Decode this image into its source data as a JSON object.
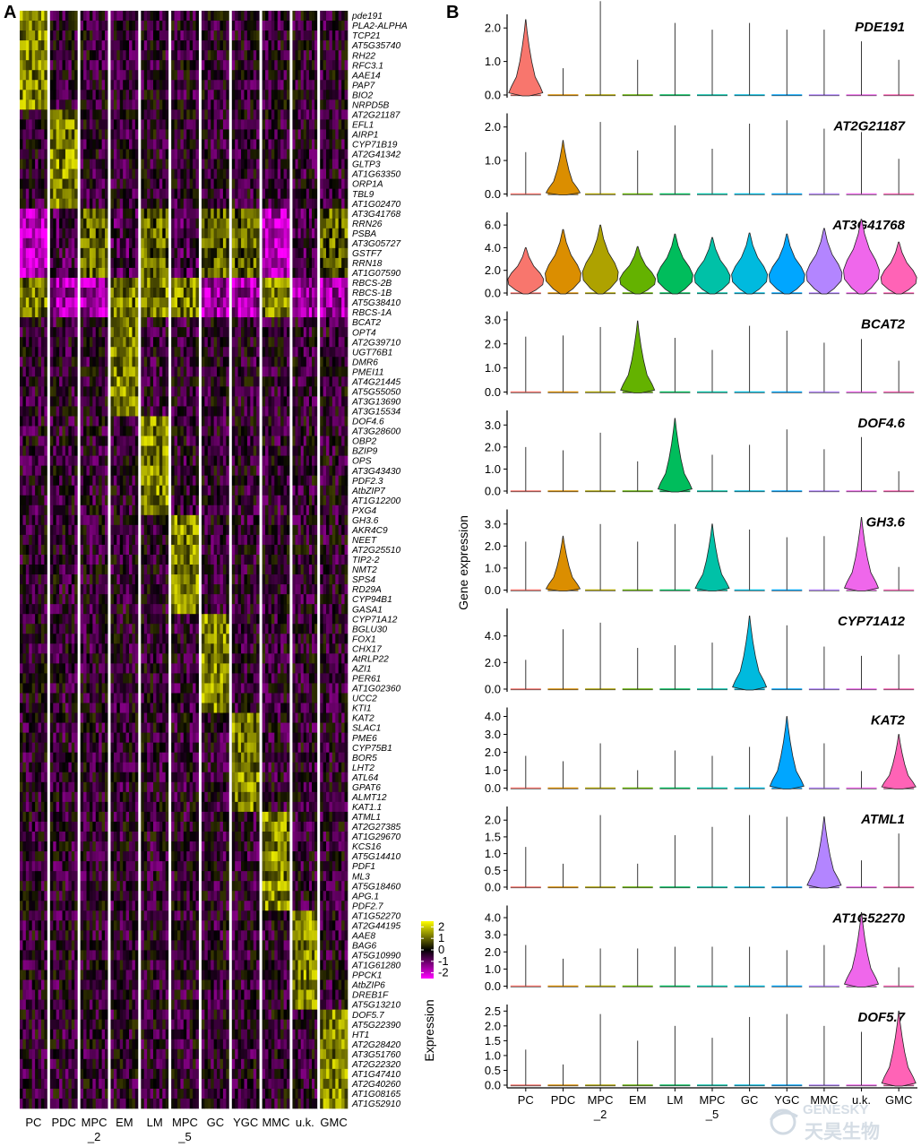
{
  "panels": {
    "a_label": "A",
    "b_label": "B"
  },
  "chart_data": [
    {
      "type": "heatmap",
      "panel": "A",
      "clusters": [
        "PC",
        "PDC",
        "MPC_2",
        "EM",
        "LM",
        "MPC_5",
        "GC",
        "YGC",
        "MMC",
        "u.k.",
        "GMC"
      ],
      "cluster_labels": [
        [
          "PC"
        ],
        [
          "PDC"
        ],
        [
          "MPC",
          "_2"
        ],
        [
          "EM"
        ],
        [
          "LM"
        ],
        [
          "MPC",
          "_5"
        ],
        [
          "GC"
        ],
        [
          "YGC"
        ],
        [
          "MMC"
        ],
        [
          "u.k."
        ],
        [
          "GMC"
        ]
      ],
      "cluster_widths": [
        3,
        3,
        3,
        3,
        3,
        3,
        3,
        3,
        3,
        2.7,
        3
      ],
      "genes": [
        "pde191",
        "PLA2-ALPHA",
        "TCP21",
        "AT5G35740",
        "RH22",
        "RFC3.1",
        "AAE14",
        "PAP7",
        "BIO2",
        "NRPD5B",
        "AT2G21187",
        "EFL1",
        "AIRP1",
        "CYP71B19",
        "AT2G41342",
        "GLTP3",
        "AT1G63350",
        "ORP1A",
        "TBL9",
        "AT1G02470",
        "AT3G41768",
        "RRN26",
        "PSBA",
        "AT3G05727",
        "GSTF7",
        "RRN18",
        "AT1G07590",
        "RBCS-2B",
        "RBCS-1B",
        "AT5G38410",
        "RBCS-1A",
        "BCAT2",
        "OPT4",
        "AT2G39710",
        "UGT76B1",
        "DMR6",
        "PMEI11",
        "AT4G21445",
        "AT5G55050",
        "AT3G13690",
        "AT3G15534",
        "DOF4.6",
        "AT3G28600",
        "OBP2",
        "BZIP9",
        "OPS",
        "AT3G43430",
        "PDF2.3",
        "AtbZIP7",
        "AT1G12200",
        "PXG4",
        "GH3.6",
        "AKR4C9",
        "NEET",
        "AT2G25510",
        "TIP2-2",
        "NMT2",
        "SPS4",
        "RD29A",
        "CYP94B1",
        "GASA1",
        "CYP71A12",
        "BGLU30",
        "FOX1",
        "CHX17",
        "AtRLP22",
        "AZI1",
        "PER61",
        "AT1G02360",
        "UCC2",
        "KTI1",
        "KAT2",
        "SLAC1",
        "PME6",
        "CYP75B1",
        "BOR5",
        "LHT2",
        "ATL64",
        "GPAT6",
        "ALMT12",
        "KAT1.1",
        "ATML1",
        "AT2G27385",
        "AT1G29670",
        "KCS16",
        "AT5G14410",
        "PDF1",
        "ML3",
        "AT5G18460",
        "APG.1",
        "PDF2.7",
        "AT1G52270",
        "AT2G44195",
        "AAE8",
        "BAG6",
        "AT5G10990",
        "AT1G61280",
        "PPCK1",
        "AtbZIP6",
        "DREB1F",
        "AT5G13210",
        "DOF5.7",
        "AT5G22390",
        "HT1",
        "AT2G28420",
        "AT3G51760",
        "AT2G22320",
        "AT1G47410",
        "AT2G40260",
        "AT1G08165",
        "AT1G52910"
      ],
      "marker_groups": [
        {
          "cluster": "PC",
          "start": 0,
          "end": 10
        },
        {
          "cluster": "PDC",
          "start": 10,
          "end": 20
        },
        {
          "cluster": "MPC_2",
          "start": 20,
          "end": 27,
          "pattern": "chloroplast"
        },
        {
          "cluster": "PC",
          "start": 27,
          "end": 31,
          "pattern": "rbcs"
        },
        {
          "cluster": "EM",
          "start": 31,
          "end": 41
        },
        {
          "cluster": "LM",
          "start": 41,
          "end": 51
        },
        {
          "cluster": "MPC_5",
          "start": 51,
          "end": 61
        },
        {
          "cluster": "GC",
          "start": 61,
          "end": 71
        },
        {
          "cluster": "YGC",
          "start": 71,
          "end": 81
        },
        {
          "cluster": "MMC",
          "start": 81,
          "end": 91
        },
        {
          "cluster": "u.k.",
          "start": 91,
          "end": 101
        },
        {
          "cluster": "GMC",
          "start": 101,
          "end": 111
        }
      ],
      "color_scale": {
        "title": "Expression",
        "ticks": [
          "2",
          "1",
          "0",
          "-1",
          "-2"
        ],
        "range": [
          -2.5,
          2.5
        ],
        "stops": [
          {
            "value": -2.5,
            "color": "#ff00ff"
          },
          {
            "value": 0,
            "color": "#000000"
          },
          {
            "value": 2.5,
            "color": "#ffff00"
          }
        ]
      }
    },
    {
      "type": "violin",
      "panel": "B",
      "ylabel": "Gene expression",
      "clusters": [
        "PC",
        "PDC",
        "MPC_2",
        "EM",
        "LM",
        "MPC_5",
        "GC",
        "YGC",
        "MMC",
        "u.k.",
        "GMC"
      ],
      "x_tick_labels": [
        [
          "PC"
        ],
        [
          "PDC"
        ],
        [
          "MPC",
          "_2"
        ],
        [
          "EM"
        ],
        [
          "LM"
        ],
        [
          "MPC",
          "_5"
        ],
        [
          "GC"
        ],
        [
          "YGC"
        ],
        [
          "MMC"
        ],
        [
          "u.k."
        ],
        [
          "GMC"
        ]
      ],
      "cluster_colors": [
        "#f8766d",
        "#db8e00",
        "#aea200",
        "#64b200",
        "#00bd5c",
        "#00c1a7",
        "#00bade",
        "#00a6ff",
        "#b385ff",
        "#ef67eb",
        "#ff63b6"
      ],
      "panels": [
        {
          "gene": "PDE191",
          "ylim": [
            0,
            2.3
          ],
          "yticks": [
            "0.0",
            "1.0",
            "2.0"
          ],
          "max": [
            2.25,
            0.8,
            2.8,
            1.05,
            2.15,
            1.95,
            2.15,
            1.95,
            1.95,
            1.6,
            1.05
          ],
          "shape": "b",
          "highlight": [
            0
          ]
        },
        {
          "gene": "AT2G21187",
          "ylim": [
            0,
            2.3
          ],
          "yticks": [
            "0.0",
            "1.0",
            "2.0"
          ],
          "max": [
            1.25,
            1.6,
            2.15,
            1.3,
            2.05,
            1.35,
            2.1,
            2.2,
            1.95,
            1.85,
            1.05
          ],
          "shape": "b",
          "highlight": [
            1
          ]
        },
        {
          "gene": "AT3G41768",
          "ylim": [
            0,
            6.8
          ],
          "yticks": [
            "0.0",
            "2.0",
            "4.0",
            "6.0"
          ],
          "max": [
            4.0,
            5.6,
            6.0,
            4.1,
            5.2,
            4.9,
            5.3,
            5.2,
            5.7,
            6.5,
            4.5
          ],
          "shape": "all",
          "highlight": [
            0,
            1,
            2,
            3,
            4,
            5,
            6,
            7,
            8,
            9,
            10
          ]
        },
        {
          "gene": "BCAT2",
          "ylim": [
            0,
            3.2
          ],
          "yticks": [
            "0.0",
            "1.0",
            "2.0",
            "3.0"
          ],
          "max": [
            2.3,
            2.35,
            2.7,
            2.95,
            2.25,
            1.75,
            2.75,
            2.55,
            2.05,
            2.2,
            1.3
          ],
          "shape": "b",
          "highlight": [
            3
          ]
        },
        {
          "gene": "DOF4.6",
          "ylim": [
            0,
            3.5
          ],
          "yticks": [
            "0.0",
            "1.0",
            "2.0",
            "3.0"
          ],
          "max": [
            2.0,
            1.85,
            2.65,
            1.35,
            3.3,
            1.65,
            2.1,
            2.8,
            1.9,
            2.45,
            0.9
          ],
          "shape": "b",
          "highlight": [
            4
          ]
        },
        {
          "gene": "GH3.6",
          "ylim": [
            0,
            3.5
          ],
          "yticks": [
            "0.0",
            "1.0",
            "2.0",
            "3.0"
          ],
          "max": [
            2.2,
            2.45,
            3.0,
            2.2,
            3.0,
            3.0,
            2.75,
            2.4,
            2.45,
            3.3,
            1.05
          ],
          "shape": "b",
          "highlight": [
            1,
            5,
            9
          ]
        },
        {
          "gene": "CYP71A12",
          "ylim": [
            0,
            5.8
          ],
          "yticks": [
            "0.0",
            "2.0",
            "4.0"
          ],
          "max": [
            2.2,
            4.5,
            5.0,
            3.1,
            3.3,
            3.5,
            5.5,
            4.8,
            3.2,
            2.5,
            2.6
          ],
          "shape": "b",
          "highlight": [
            6
          ]
        },
        {
          "gene": "KAT2",
          "ylim": [
            0,
            4.3
          ],
          "yticks": [
            "0.0",
            "1.0",
            "2.0",
            "3.0",
            "4.0"
          ],
          "max": [
            1.8,
            1.5,
            2.5,
            1.0,
            2.1,
            1.8,
            2.3,
            4.0,
            2.5,
            0.95,
            3.0
          ],
          "shape": "b",
          "highlight": [
            7,
            10
          ]
        },
        {
          "gene": "ATML1",
          "ylim": [
            0,
            2.3
          ],
          "yticks": [
            "0.0",
            "0.5",
            "1.0",
            "1.5",
            "2.0"
          ],
          "max": [
            1.2,
            0.7,
            2.15,
            0.7,
            1.55,
            1.8,
            2.15,
            2.1,
            2.1,
            0.8,
            1.6
          ],
          "shape": "b",
          "highlight": [
            8
          ]
        },
        {
          "gene": "AT1G52270",
          "ylim": [
            0,
            4.5
          ],
          "yticks": [
            "0.0",
            "1.0",
            "2.0",
            "3.0",
            "4.0"
          ],
          "max": [
            2.4,
            1.6,
            2.2,
            2.2,
            2.3,
            2.3,
            2.3,
            2.1,
            2.4,
            4.3,
            1.1
          ],
          "shape": "b",
          "highlight": [
            9
          ]
        },
        {
          "gene": "DOF5.7",
          "ylim": [
            0,
            2.6
          ],
          "yticks": [
            "0.0",
            "0.5",
            "1.0",
            "1.5",
            "2.0",
            "2.5"
          ],
          "max": [
            1.2,
            0.7,
            2.4,
            1.5,
            2.0,
            1.6,
            2.3,
            2.4,
            2.0,
            1.8,
            2.5
          ],
          "shape": "b",
          "highlight": [
            10
          ]
        }
      ]
    }
  ],
  "watermark": {
    "latin": "GENESKY",
    "cjk": "天昊生物"
  }
}
